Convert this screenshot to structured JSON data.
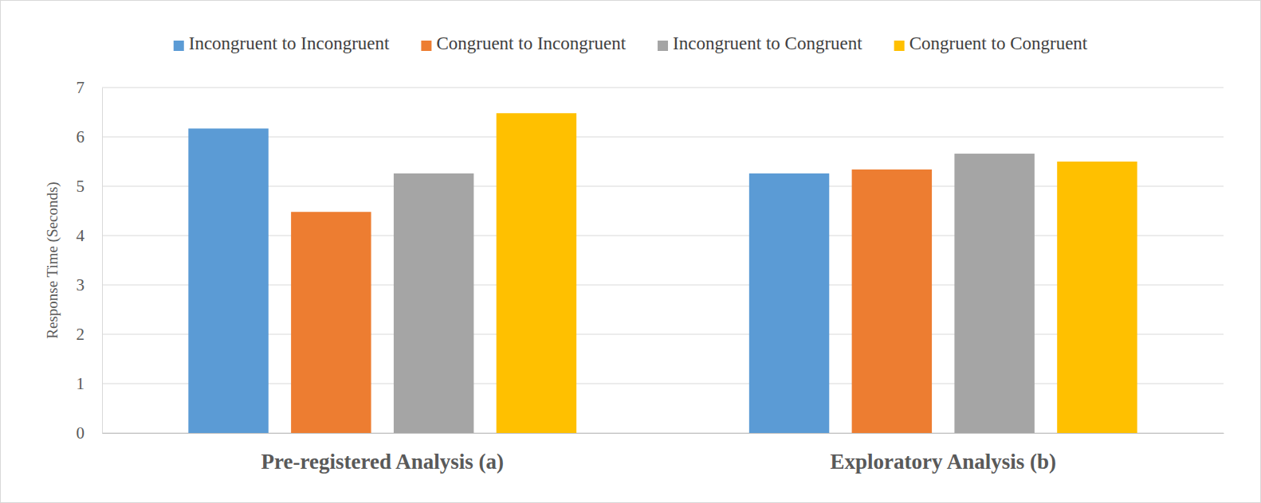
{
  "chart_data": {
    "type": "bar",
    "y_label": "Response Time (Seconds)",
    "categories": [
      "Pre-registered Analysis (a)",
      "Exploratory Analysis (b)"
    ],
    "series": [
      {
        "name": "Incongruent to Incongruent",
        "color": "#5B9BD5",
        "values": [
          6.17,
          5.26
        ]
      },
      {
        "name": "Congruent to Incongruent",
        "color": "#ED7D31",
        "values": [
          4.48,
          5.34
        ]
      },
      {
        "name": "Incongruent to Congruent",
        "color": "#A5A5A5",
        "values": [
          5.26,
          5.66
        ]
      },
      {
        "name": "Congruent to Congruent",
        "color": "#FFC000",
        "values": [
          6.48,
          5.5
        ]
      }
    ],
    "ylim": [
      0,
      7
    ],
    "yticks": [
      0,
      1,
      2,
      3,
      4,
      5,
      6,
      7
    ],
    "grid": true,
    "legend": "top"
  }
}
